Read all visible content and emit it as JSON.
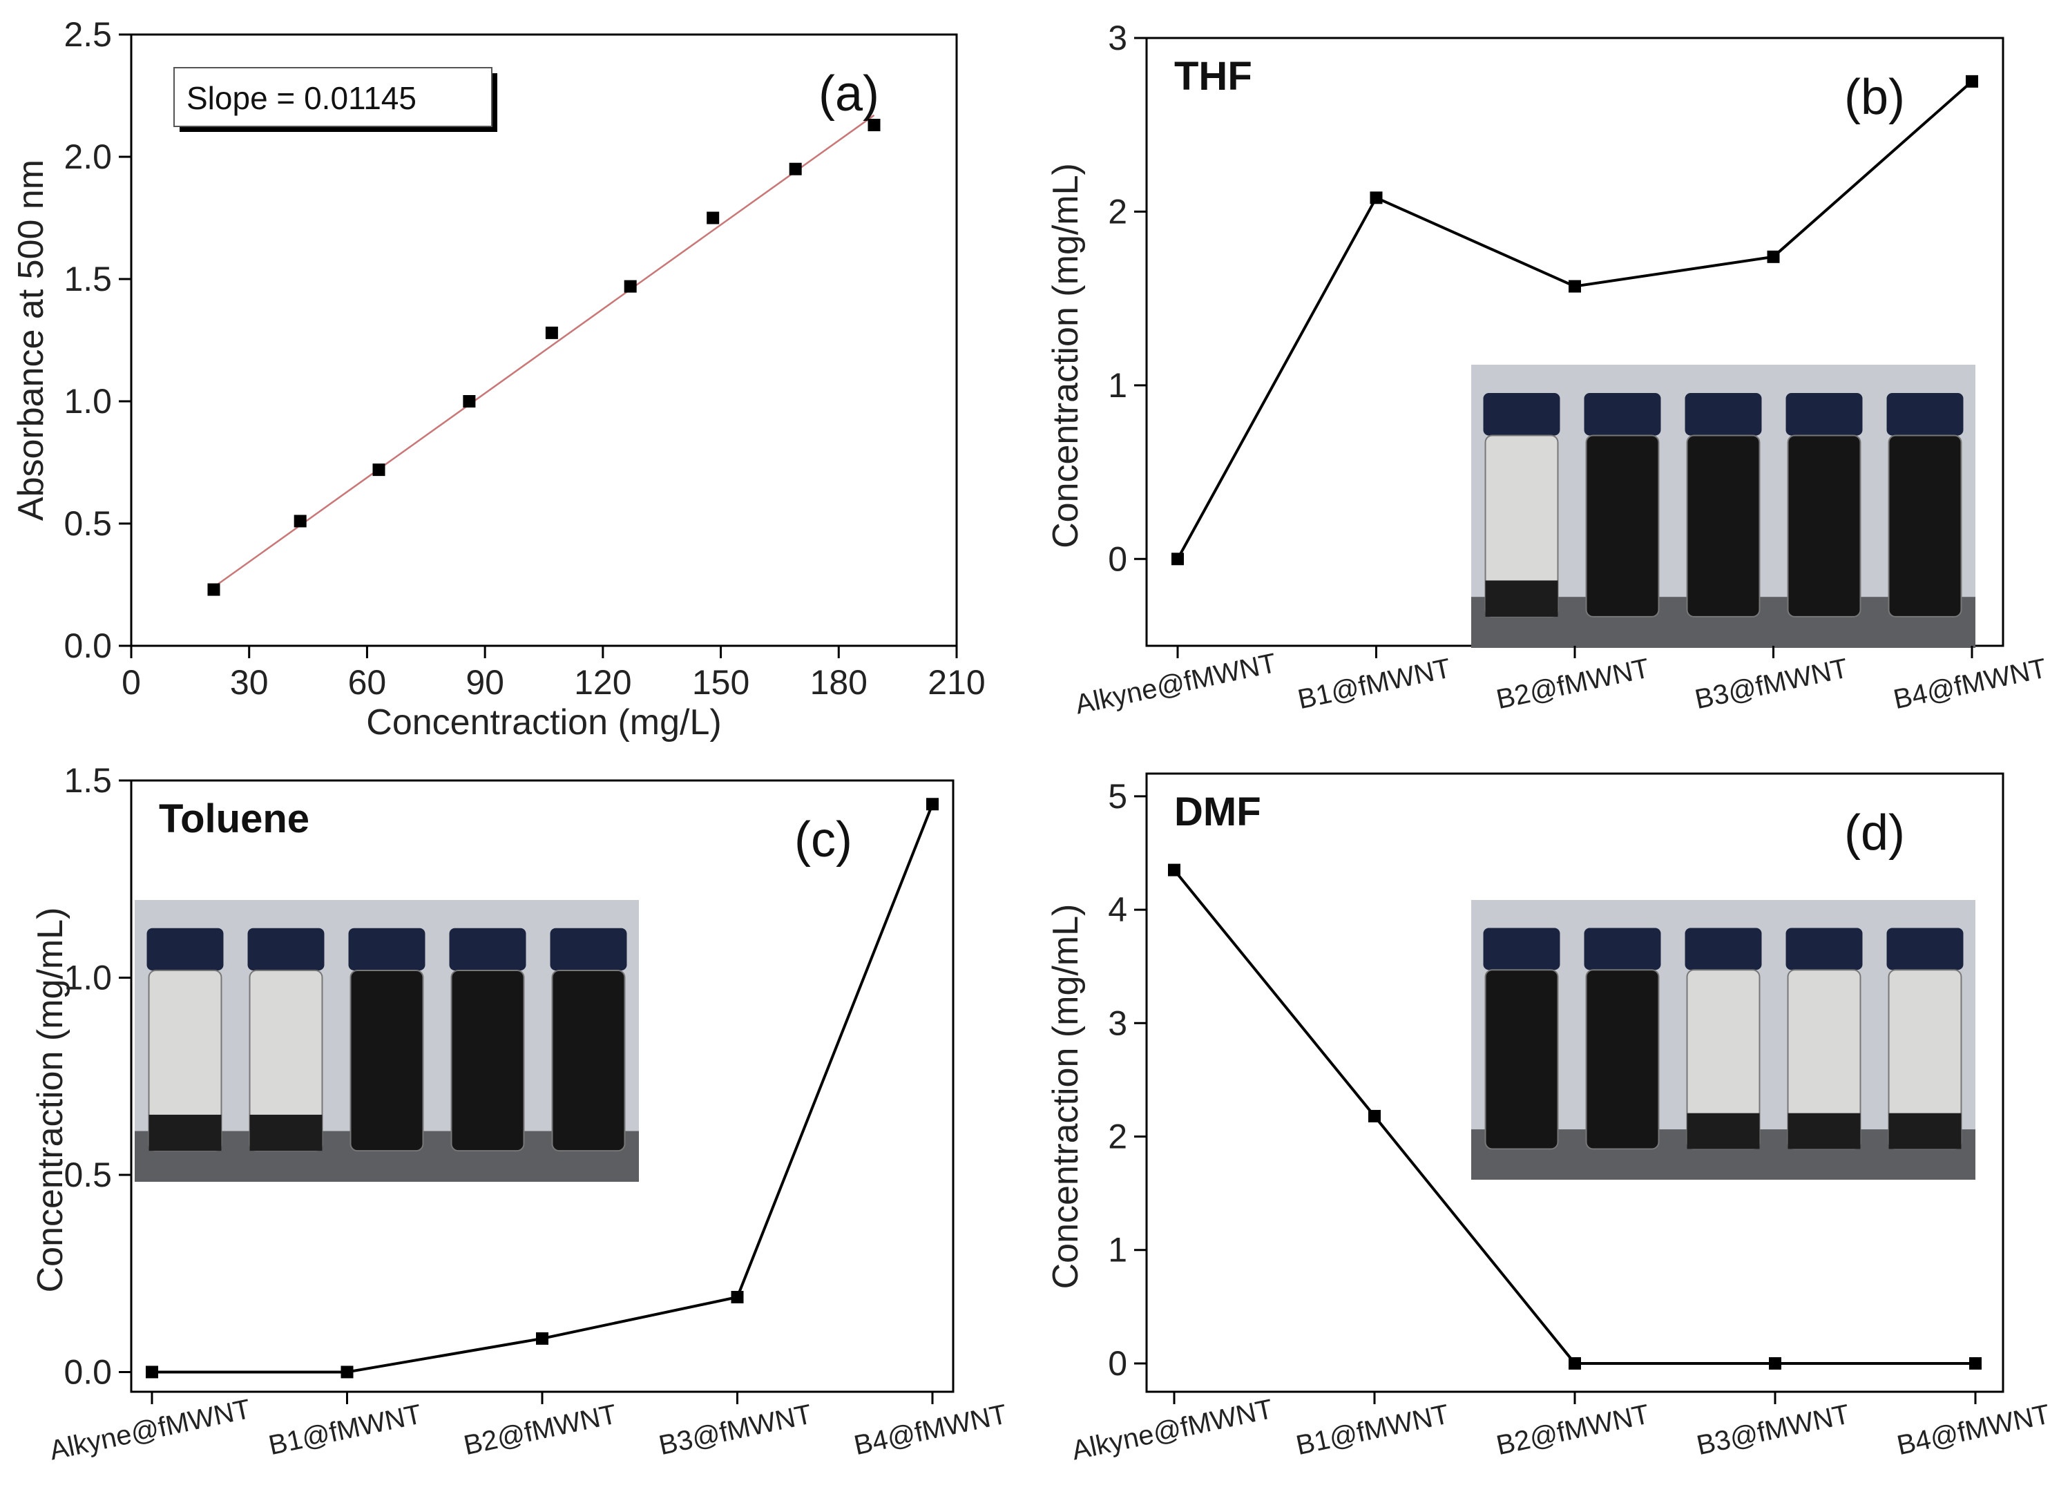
{
  "chart_data": [
    {
      "type": "scatter",
      "panel_label": "(a)",
      "annotation": "Slope = 0.01145",
      "xlabel": "Concentraction (mg/L)",
      "ylabel": "Absorbance at 500 nm",
      "xlim": [
        0,
        210
      ],
      "ylim": [
        0,
        2.5
      ],
      "xticks": [
        "0",
        "30",
        "60",
        "90",
        "120",
        "150",
        "180",
        "210"
      ],
      "yticks": [
        "0.0",
        "0.5",
        "1.0",
        "1.5",
        "2.0",
        "2.5"
      ],
      "x": [
        21,
        43,
        63,
        86,
        107,
        127,
        148,
        169,
        189
      ],
      "y": [
        0.23,
        0.51,
        0.72,
        1.0,
        1.28,
        1.47,
        1.75,
        1.95,
        2.13
      ],
      "fit_line": {
        "x": [
          21,
          189
        ],
        "y": [
          0.24,
          2.17
        ]
      },
      "colors": {
        "marker": "#000000",
        "fit": "#c97777"
      }
    },
    {
      "type": "line",
      "panel_label": "(b)",
      "solvent": "THF",
      "ylabel": "Concentraction (mg/mL)",
      "ylim": [
        -0.5,
        3
      ],
      "yticks": [
        "0",
        "1",
        "2",
        "3"
      ],
      "categories": [
        "Alkyne@fMWNT",
        "B1@fMWNT",
        "B2@fMWNT",
        "B3@fMWNT",
        "B4@fMWNT"
      ],
      "values": [
        0,
        2.08,
        1.57,
        1.74,
        2.75
      ],
      "inset_photo": {
        "vials": [
          "clear",
          "black",
          "black",
          "black",
          "black"
        ]
      }
    },
    {
      "type": "line",
      "panel_label": "(c)",
      "solvent": "Toluene",
      "ylabel": "Concentraction (mg/mL)",
      "ylim": [
        -0.05,
        1.5
      ],
      "yticks": [
        "0.0",
        "0.5",
        "1.0",
        "1.5"
      ],
      "categories": [
        "Alkyne@fMWNT",
        "B1@fMWNT",
        "B2@fMWNT",
        "B3@fMWNT",
        "B4@fMWNT"
      ],
      "values": [
        0,
        0,
        0.085,
        0.19,
        1.44
      ],
      "inset_photo": {
        "vials": [
          "clear",
          "clear",
          "black",
          "black",
          "black"
        ]
      }
    },
    {
      "type": "line",
      "panel_label": "(d)",
      "solvent": "DMF",
      "ylabel": "Concentraction (mg/mL)",
      "ylim": [
        -0.25,
        5.2
      ],
      "yticks": [
        "0",
        "1",
        "2",
        "3",
        "4",
        "5"
      ],
      "categories": [
        "Alkyne@fMWNT",
        "B1@fMWNT",
        "B2@fMWNT",
        "B3@fMWNT",
        "B4@fMWNT"
      ],
      "values": [
        4.35,
        2.18,
        0,
        0,
        0
      ],
      "inset_photo": {
        "vials": [
          "black",
          "black",
          "clear",
          "clear",
          "clear"
        ]
      }
    }
  ]
}
